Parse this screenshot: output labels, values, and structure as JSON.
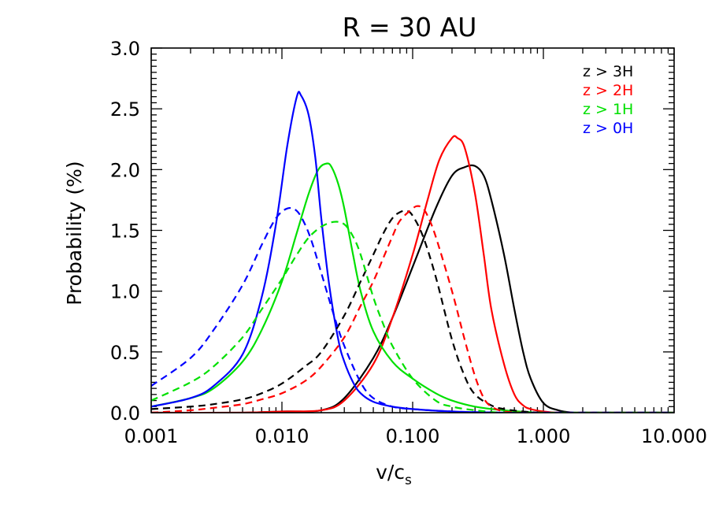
{
  "chart_data": {
    "type": "line",
    "title": "R  =  30  AU",
    "xlabel": "v/c",
    "xlabel_sub": "s",
    "ylabel": "Probability  (%)",
    "xscale": "log",
    "xlim": [
      0.001,
      10.0
    ],
    "ylim": [
      0.0,
      3.0
    ],
    "xticks": [
      "0.001",
      "0.010",
      "0.100",
      "1.000",
      "10.000"
    ],
    "yticks": [
      "0.0",
      "0.5",
      "1.0",
      "1.5",
      "2.0",
      "2.5",
      "3.0"
    ],
    "legend": {
      "placement": "top-right",
      "entries": [
        {
          "label": "z  >  3H",
          "color": "#000000"
        },
        {
          "label": "z  >  2H",
          "color": "#ff0000"
        },
        {
          "label": "z  >  1H",
          "color": "#00e000"
        },
        {
          "label": "z  >  0H",
          "color": "#0000ff"
        }
      ]
    },
    "series": [
      {
        "color": "#000000",
        "style": "solid",
        "x": [
          0.001,
          0.005,
          0.01,
          0.02,
          0.03,
          0.05,
          0.07,
          0.1,
          0.15,
          0.2,
          0.25,
          0.3,
          0.35,
          0.4,
          0.5,
          0.6,
          0.7,
          0.8,
          1.0,
          1.3,
          1.7,
          2.0,
          10.0
        ],
        "y": [
          0.0,
          0.0,
          0.01,
          0.02,
          0.12,
          0.45,
          0.78,
          1.2,
          1.68,
          1.95,
          2.02,
          2.03,
          1.95,
          1.75,
          1.3,
          0.85,
          0.5,
          0.28,
          0.08,
          0.02,
          0.0,
          0.0,
          0.0
        ]
      },
      {
        "color": "#ff0000",
        "style": "solid",
        "x": [
          0.001,
          0.005,
          0.01,
          0.02,
          0.03,
          0.05,
          0.07,
          0.1,
          0.13,
          0.16,
          0.2,
          0.22,
          0.25,
          0.3,
          0.35,
          0.4,
          0.5,
          0.6,
          0.7,
          0.8,
          1.0,
          1.3,
          2.0,
          10.0
        ],
        "y": [
          0.0,
          0.0,
          0.01,
          0.02,
          0.1,
          0.4,
          0.78,
          1.3,
          1.75,
          2.08,
          2.26,
          2.26,
          2.18,
          1.8,
          1.3,
          0.85,
          0.4,
          0.15,
          0.06,
          0.03,
          0.01,
          0.0,
          0.0,
          0.0
        ]
      },
      {
        "color": "#00e000",
        "style": "solid",
        "x": [
          0.001,
          0.002,
          0.003,
          0.005,
          0.007,
          0.01,
          0.013,
          0.016,
          0.019,
          0.022,
          0.024,
          0.027,
          0.03,
          0.035,
          0.04,
          0.05,
          0.07,
          0.1,
          0.15,
          0.2,
          0.3,
          0.5,
          1.0,
          2.0,
          10.0
        ],
        "y": [
          0.05,
          0.12,
          0.2,
          0.42,
          0.68,
          1.08,
          1.48,
          1.8,
          2.0,
          2.05,
          2.02,
          1.88,
          1.68,
          1.3,
          1.0,
          0.67,
          0.42,
          0.28,
          0.16,
          0.1,
          0.05,
          0.02,
          0.0,
          0.0,
          0.0
        ]
      },
      {
        "color": "#0000ff",
        "style": "solid",
        "x": [
          0.001,
          0.002,
          0.003,
          0.005,
          0.007,
          0.009,
          0.011,
          0.013,
          0.014,
          0.016,
          0.018,
          0.02,
          0.023,
          0.027,
          0.03,
          0.035,
          0.04,
          0.05,
          0.07,
          0.1,
          0.2,
          0.5,
          1.0,
          10.0
        ],
        "y": [
          0.05,
          0.12,
          0.22,
          0.48,
          0.95,
          1.55,
          2.2,
          2.6,
          2.61,
          2.45,
          2.1,
          1.6,
          1.05,
          0.6,
          0.42,
          0.25,
          0.16,
          0.09,
          0.05,
          0.03,
          0.01,
          0.0,
          0.0,
          0.0
        ]
      },
      {
        "color": "#000000",
        "style": "dashed",
        "x": [
          0.001,
          0.002,
          0.003,
          0.005,
          0.007,
          0.01,
          0.015,
          0.02,
          0.03,
          0.04,
          0.05,
          0.06,
          0.07,
          0.08,
          0.09,
          0.1,
          0.12,
          0.15,
          0.2,
          0.25,
          0.3,
          0.4,
          0.5,
          0.7,
          1.0,
          2.0,
          10.0
        ],
        "y": [
          0.03,
          0.05,
          0.07,
          0.11,
          0.16,
          0.24,
          0.38,
          0.5,
          0.8,
          1.08,
          1.3,
          1.48,
          1.6,
          1.65,
          1.66,
          1.62,
          1.45,
          1.12,
          0.6,
          0.3,
          0.15,
          0.06,
          0.03,
          0.01,
          0.0,
          0.0,
          0.0
        ]
      },
      {
        "color": "#ff0000",
        "style": "dashed",
        "x": [
          0.001,
          0.002,
          0.003,
          0.005,
          0.007,
          0.01,
          0.015,
          0.02,
          0.03,
          0.04,
          0.05,
          0.06,
          0.07,
          0.08,
          0.1,
          0.11,
          0.12,
          0.13,
          0.15,
          0.2,
          0.25,
          0.3,
          0.35,
          0.4,
          0.5,
          0.7,
          1.0,
          10.0
        ],
        "y": [
          0.0,
          0.02,
          0.04,
          0.07,
          0.11,
          0.16,
          0.26,
          0.38,
          0.62,
          0.88,
          1.08,
          1.28,
          1.45,
          1.58,
          1.68,
          1.7,
          1.68,
          1.62,
          1.45,
          1.0,
          0.6,
          0.3,
          0.12,
          0.05,
          0.01,
          0.0,
          0.0,
          0.0
        ]
      },
      {
        "color": "#00e000",
        "style": "dashed",
        "x": [
          0.001,
          0.002,
          0.003,
          0.005,
          0.007,
          0.01,
          0.013,
          0.016,
          0.02,
          0.025,
          0.03,
          0.035,
          0.04,
          0.05,
          0.06,
          0.07,
          0.1,
          0.15,
          0.2,
          0.3,
          0.5,
          1.0,
          10.0
        ],
        "y": [
          0.1,
          0.25,
          0.38,
          0.62,
          0.85,
          1.1,
          1.3,
          1.44,
          1.53,
          1.57,
          1.55,
          1.45,
          1.3,
          0.95,
          0.72,
          0.55,
          0.28,
          0.1,
          0.05,
          0.02,
          0.0,
          0.0,
          0.0
        ]
      },
      {
        "color": "#0000ff",
        "style": "dashed",
        "x": [
          0.001,
          0.002,
          0.003,
          0.005,
          0.007,
          0.009,
          0.011,
          0.013,
          0.015,
          0.017,
          0.02,
          0.025,
          0.03,
          0.04,
          0.05,
          0.07,
          0.1,
          0.2,
          0.5,
          1.0,
          10.0
        ],
        "y": [
          0.22,
          0.45,
          0.68,
          1.05,
          1.38,
          1.6,
          1.68,
          1.66,
          1.55,
          1.4,
          1.15,
          0.8,
          0.55,
          0.25,
          0.12,
          0.05,
          0.03,
          0.01,
          0.0,
          0.0,
          0.0
        ]
      }
    ]
  }
}
